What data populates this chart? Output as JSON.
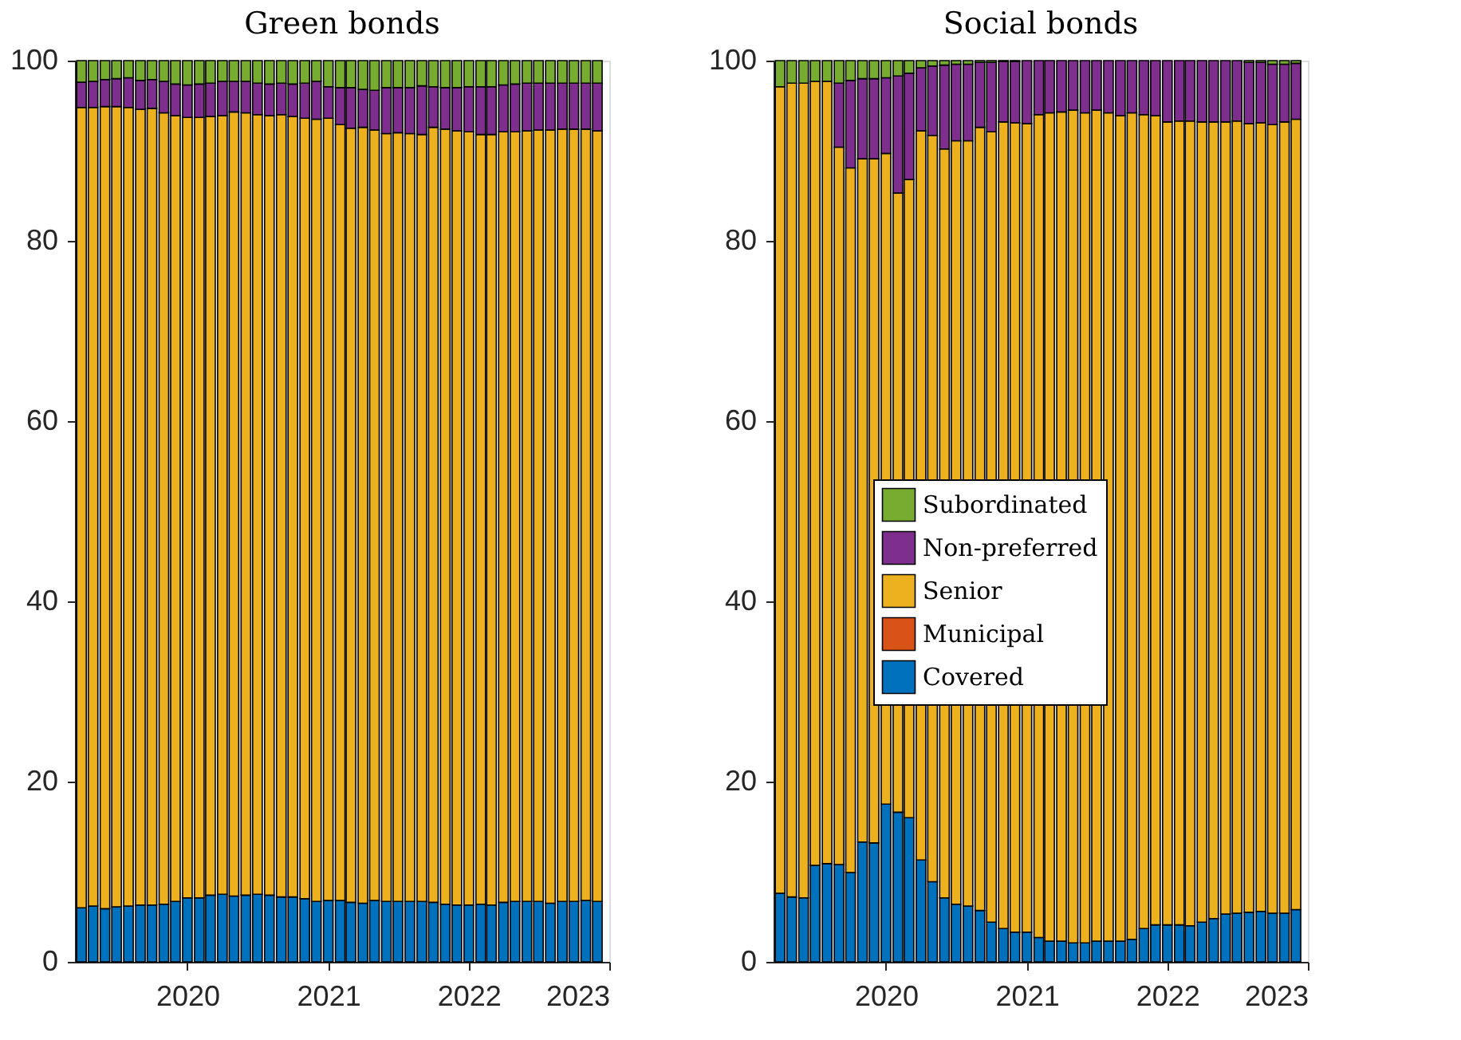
{
  "chart_data": [
    {
      "type": "bar",
      "title": "Green bonds",
      "stacked": true,
      "legend": false,
      "grid": false,
      "x": [
        "2019-04",
        "2019-05",
        "2019-06",
        "2019-07",
        "2019-08",
        "2019-09",
        "2019-10",
        "2019-11",
        "2019-12",
        "2020-01",
        "2020-02",
        "2020-03",
        "2020-04",
        "2020-05",
        "2020-06",
        "2020-07",
        "2020-08",
        "2020-09",
        "2020-10",
        "2020-11",
        "2020-12",
        "2021-01",
        "2021-02",
        "2021-03",
        "2021-04",
        "2021-05",
        "2021-06",
        "2021-07",
        "2021-08",
        "2021-09",
        "2021-10",
        "2021-11",
        "2021-12",
        "2022-01",
        "2022-02",
        "2022-03",
        "2022-04",
        "2022-05",
        "2022-06",
        "2022-07",
        "2022-08",
        "2022-09",
        "2022-10",
        "2022-11",
        "2022-12"
      ],
      "xlim": [
        "2019-03-15",
        "2023-01-01"
      ],
      "xticks": [
        {
          "value": "2020-01-01",
          "label": "2020"
        },
        {
          "value": "2021-01-01",
          "label": "2021"
        },
        {
          "value": "2022-01-01",
          "label": "2022"
        },
        {
          "value": "2023-01-01",
          "label": "2023"
        }
      ],
      "ylim": [
        0,
        100
      ],
      "yticks": [
        0,
        20,
        40,
        60,
        80,
        100
      ],
      "series": [
        {
          "color": "#0072bd",
          "values": [
            6.0,
            6.2,
            5.9,
            6.1,
            6.2,
            6.3,
            6.3,
            6.4,
            6.7,
            7.1,
            7.1,
            7.4,
            7.5,
            7.3,
            7.4,
            7.5,
            7.4,
            7.2,
            7.2,
            7.0,
            6.7,
            6.8,
            6.8,
            6.6,
            6.5,
            6.8,
            6.7,
            6.7,
            6.7,
            6.7,
            6.6,
            6.4,
            6.3,
            6.3,
            6.4,
            6.3,
            6.6,
            6.7,
            6.7,
            6.7,
            6.5,
            6.7,
            6.7,
            6.8,
            6.7
          ]
        },
        {
          "color": "#d95319",
          "values": [
            0,
            0,
            0,
            0,
            0,
            0,
            0,
            0,
            0,
            0,
            0,
            0,
            0,
            0,
            0,
            0,
            0,
            0,
            0,
            0,
            0,
            0,
            0,
            0,
            0,
            0,
            0,
            0,
            0,
            0,
            0,
            0,
            0,
            0,
            0,
            0,
            0,
            0,
            0,
            0,
            0,
            0,
            0,
            0,
            0
          ]
        },
        {
          "color": "#edb120",
          "values": [
            88.8,
            88.6,
            89.0,
            88.8,
            88.6,
            88.3,
            88.4,
            87.8,
            87.2,
            86.6,
            86.6,
            86.4,
            86.4,
            87.0,
            86.8,
            86.5,
            86.5,
            86.8,
            86.6,
            86.6,
            86.8,
            86.8,
            86.1,
            85.9,
            86.1,
            85.5,
            85.2,
            85.3,
            85.2,
            85.1,
            86.0,
            86.0,
            85.9,
            85.8,
            85.4,
            85.5,
            85.5,
            85.4,
            85.5,
            85.6,
            85.8,
            85.7,
            85.7,
            85.6,
            85.5
          ]
        },
        {
          "color": "#7e2f8e",
          "values": [
            2.8,
            2.9,
            3.0,
            3.1,
            3.3,
            3.2,
            3.2,
            3.5,
            3.5,
            3.6,
            3.7,
            3.7,
            3.8,
            3.4,
            3.5,
            3.5,
            3.5,
            3.5,
            3.6,
            3.9,
            4.2,
            3.5,
            4.1,
            4.5,
            4.2,
            4.4,
            5.1,
            5.0,
            5.1,
            5.4,
            4.5,
            4.6,
            4.8,
            5.0,
            5.3,
            5.3,
            5.2,
            5.3,
            5.3,
            5.2,
            5.2,
            5.1,
            5.1,
            5.1,
            5.3
          ]
        },
        {
          "color": "#77ac30",
          "values": [
            2.4,
            2.3,
            2.1,
            2.0,
            1.9,
            2.2,
            2.1,
            2.3,
            2.6,
            2.7,
            2.6,
            2.5,
            2.3,
            2.3,
            2.3,
            2.5,
            2.6,
            2.5,
            2.6,
            2.5,
            2.3,
            2.9,
            3.0,
            3.0,
            3.2,
            3.3,
            3.0,
            3.0,
            3.0,
            2.8,
            2.9,
            3.0,
            3.0,
            2.9,
            2.9,
            2.9,
            2.7,
            2.6,
            2.5,
            2.5,
            2.5,
            2.5,
            2.5,
            2.5,
            2.5
          ]
        }
      ]
    },
    {
      "type": "bar",
      "title": "Social bonds",
      "stacked": true,
      "legend": "center",
      "grid": false,
      "x": [
        "2019-04",
        "2019-05",
        "2019-06",
        "2019-07",
        "2019-08",
        "2019-09",
        "2019-10",
        "2019-11",
        "2019-12",
        "2020-01",
        "2020-02",
        "2020-03",
        "2020-04",
        "2020-05",
        "2020-06",
        "2020-07",
        "2020-08",
        "2020-09",
        "2020-10",
        "2020-11",
        "2020-12",
        "2021-01",
        "2021-02",
        "2021-03",
        "2021-04",
        "2021-05",
        "2021-06",
        "2021-07",
        "2021-08",
        "2021-09",
        "2021-10",
        "2021-11",
        "2021-12",
        "2022-01",
        "2022-02",
        "2022-03",
        "2022-04",
        "2022-05",
        "2022-06",
        "2022-07",
        "2022-08",
        "2022-09",
        "2022-10",
        "2022-11",
        "2022-12"
      ],
      "xlim": [
        "2019-03-15",
        "2023-01-01"
      ],
      "xticks": [
        {
          "value": "2020-01-01",
          "label": "2020"
        },
        {
          "value": "2021-01-01",
          "label": "2021"
        },
        {
          "value": "2022-01-01",
          "label": "2022"
        },
        {
          "value": "2023-01-01",
          "label": "2023"
        }
      ],
      "ylim": [
        0,
        100
      ],
      "yticks": [
        0,
        20,
        40,
        60,
        80,
        100
      ],
      "series": [
        {
          "name": "Covered",
          "color": "#0072bd",
          "values": [
            7.6,
            7.2,
            7.1,
            10.7,
            10.9,
            10.8,
            9.9,
            13.3,
            13.2,
            17.5,
            16.6,
            16.0,
            11.3,
            8.9,
            7.1,
            6.4,
            6.2,
            5.7,
            4.4,
            3.7,
            3.3,
            3.3,
            2.7,
            2.3,
            2.3,
            2.1,
            2.1,
            2.3,
            2.3,
            2.3,
            2.5,
            3.7,
            4.1,
            4.1,
            4.1,
            4.0,
            4.4,
            4.8,
            5.3,
            5.4,
            5.5,
            5.6,
            5.4,
            5.4,
            5.8
          ]
        },
        {
          "name": "Municipal",
          "color": "#d95319",
          "values": [
            0,
            0,
            0,
            0,
            0,
            0,
            0,
            0,
            0,
            0,
            0,
            0,
            0,
            0,
            0,
            0,
            0,
            0,
            0,
            0,
            0,
            0,
            0,
            0,
            0,
            0,
            0,
            0,
            0,
            0,
            0,
            0,
            0,
            0,
            0,
            0,
            0,
            0,
            0,
            0,
            0,
            0,
            0,
            0,
            0
          ]
        },
        {
          "name": "Senior",
          "color": "#edb120",
          "values": [
            89.5,
            90.3,
            90.4,
            87.0,
            86.8,
            79.6,
            78.2,
            75.8,
            75.9,
            72.2,
            68.7,
            70.8,
            80.9,
            82.8,
            83.1,
            84.7,
            84.9,
            86.9,
            87.7,
            89.5,
            89.8,
            89.7,
            91.3,
            91.9,
            92.0,
            92.4,
            92.1,
            92.2,
            91.9,
            91.6,
            91.7,
            90.3,
            89.8,
            89.1,
            89.2,
            89.3,
            88.8,
            88.4,
            87.9,
            87.9,
            87.5,
            87.5,
            87.5,
            87.8,
            87.7
          ]
        },
        {
          "name": "Non-preferred",
          "color": "#7e2f8e",
          "values": [
            0,
            0,
            0,
            0,
            0,
            7.1,
            9.7,
            8.9,
            8.9,
            8.4,
            13.0,
            11.8,
            7.0,
            7.7,
            9.3,
            8.5,
            8.5,
            7.2,
            7.7,
            6.7,
            6.8,
            7.0,
            6.0,
            5.8,
            5.7,
            5.5,
            5.8,
            5.5,
            5.8,
            6.1,
            5.8,
            6.0,
            6.1,
            6.8,
            6.7,
            6.7,
            6.8,
            6.8,
            6.8,
            6.7,
            6.8,
            6.7,
            6.7,
            6.4,
            6.2
          ]
        },
        {
          "name": "Subordinated",
          "color": "#77ac30",
          "values": [
            2.9,
            2.5,
            2.5,
            2.3,
            2.3,
            2.5,
            2.2,
            2.0,
            2.0,
            1.9,
            1.7,
            1.4,
            0.8,
            0.6,
            0.5,
            0.4,
            0.4,
            0.2,
            0.2,
            0.1,
            0.1,
            0,
            0,
            0,
            0,
            0,
            0,
            0,
            0,
            0,
            0,
            0,
            0,
            0,
            0,
            0,
            0,
            0,
            0,
            0,
            0.2,
            0.2,
            0.4,
            0.4,
            0.3
          ]
        }
      ]
    }
  ]
}
